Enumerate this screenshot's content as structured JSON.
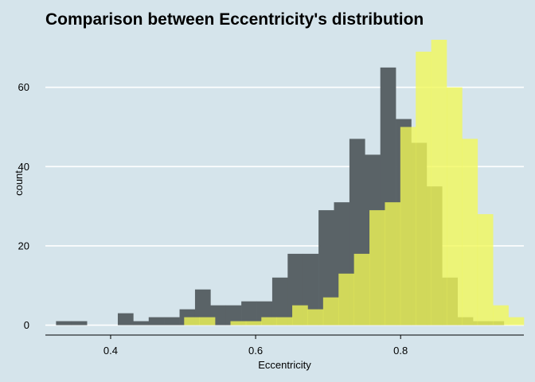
{
  "chart_data": {
    "type": "bar",
    "title": "Comparison between Eccentricity's distribution",
    "xlabel": "Eccentricity",
    "ylabel": "count",
    "xlim": [
      0.31,
      0.97
    ],
    "ylim": [
      -2.5,
      74
    ],
    "x_ticks": [
      0.4,
      0.6,
      0.8
    ],
    "y_ticks": [
      0,
      20,
      40,
      60
    ],
    "grid": "horizontal",
    "legend": "none",
    "bin_width": 0.0213,
    "series": [
      {
        "color": "#5a6367",
        "bin_starts": [
          0.3247,
          0.346,
          0.3673,
          0.3886,
          0.4099,
          0.4312,
          0.4525,
          0.4738,
          0.4951,
          0.5164,
          0.5377,
          0.559,
          0.5803,
          0.6016,
          0.6229,
          0.6442,
          0.6655,
          0.6868,
          0.7081,
          0.7294,
          0.7507,
          0.772,
          0.7933,
          0.8146,
          0.8359,
          0.8572,
          0.8785,
          0.8998,
          0.9211
        ],
        "values": [
          1,
          1,
          0,
          0,
          3,
          1,
          2,
          2,
          4,
          9,
          5,
          5,
          6,
          6,
          12,
          18,
          18,
          29,
          31,
          47,
          43,
          65,
          52,
          46,
          35,
          12,
          2,
          1,
          1
        ]
      },
      {
        "color": "#f2f957",
        "bin_starts": [
          0.5014,
          0.5227,
          0.544,
          0.5653,
          0.5866,
          0.6079,
          0.6292,
          0.6505,
          0.6718,
          0.6931,
          0.7144,
          0.7357,
          0.757,
          0.7783,
          0.7996,
          0.8209,
          0.8422,
          0.8635,
          0.8848,
          0.9061,
          0.9274,
          0.9487
        ],
        "values": [
          2,
          2,
          0,
          1,
          1,
          2,
          2,
          5,
          4,
          7,
          13,
          18,
          29,
          31,
          50,
          69,
          72,
          60,
          47,
          28,
          5,
          2
        ]
      }
    ]
  }
}
